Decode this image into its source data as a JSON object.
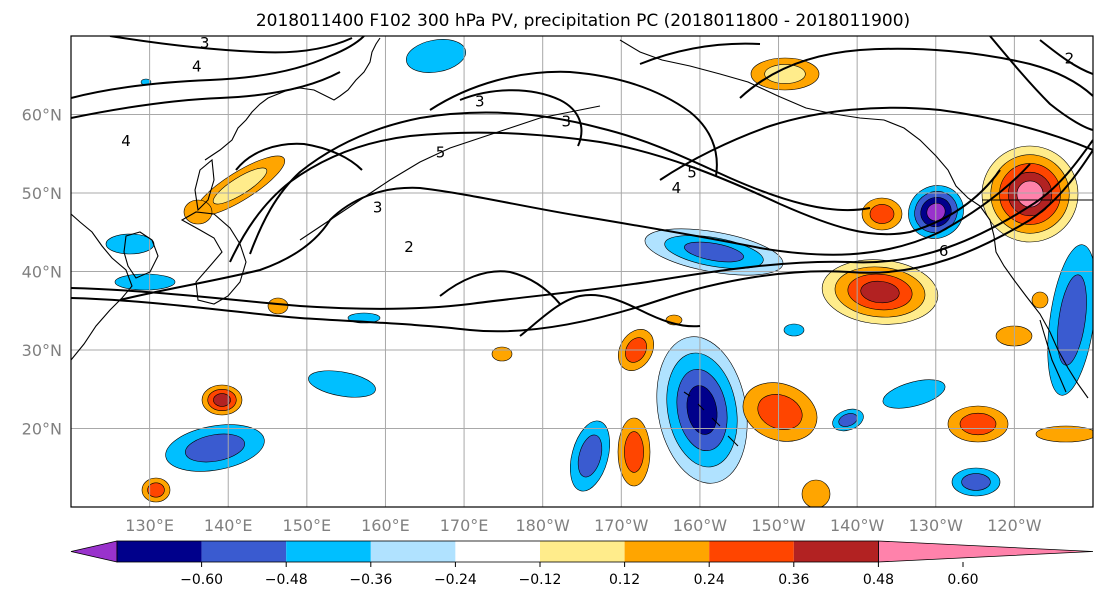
{
  "title": "2018011400 F102 300 hPa PV, precipitation PC (2018011800 - 2018011900)",
  "map": {
    "lat_range": [
      10,
      70
    ],
    "lon_range": [
      120,
      250
    ],
    "lat_ticks": [
      {
        "value": 20,
        "label": "20°N"
      },
      {
        "value": 30,
        "label": "30°N"
      },
      {
        "value": 40,
        "label": "40°N"
      },
      {
        "value": 50,
        "label": "50°N"
      },
      {
        "value": 60,
        "label": "60°N"
      }
    ],
    "lon_ticks": [
      {
        "value": 130,
        "label": "130°E"
      },
      {
        "value": 140,
        "label": "140°E"
      },
      {
        "value": 150,
        "label": "150°E"
      },
      {
        "value": 160,
        "label": "160°E"
      },
      {
        "value": 170,
        "label": "170°E"
      },
      {
        "value": 180,
        "label": "180°W"
      },
      {
        "value": 190,
        "label": "170°W"
      },
      {
        "value": 200,
        "label": "160°W"
      },
      {
        "value": 210,
        "label": "150°W"
      },
      {
        "value": 220,
        "label": "140°W"
      },
      {
        "value": 230,
        "label": "130°W"
      },
      {
        "value": 240,
        "label": "120°W"
      }
    ],
    "gridlines": true,
    "pv_contour_labels": [
      {
        "text": "3",
        "lon": 137,
        "lat": 68.5
      },
      {
        "text": "4",
        "lon": 136,
        "lat": 65.5
      },
      {
        "text": "4",
        "lon": 127,
        "lat": 56
      },
      {
        "text": "3",
        "lon": 172,
        "lat": 61
      },
      {
        "text": "3",
        "lon": 183,
        "lat": 58.5
      },
      {
        "text": "5",
        "lon": 167,
        "lat": 54.5
      },
      {
        "text": "3",
        "lon": 159,
        "lat": 47.5
      },
      {
        "text": "2",
        "lon": 163,
        "lat": 42.5
      },
      {
        "text": "4",
        "lon": 197,
        "lat": 50
      },
      {
        "text": "5",
        "lon": 199,
        "lat": 52
      },
      {
        "text": "6",
        "lon": 231,
        "lat": 42
      },
      {
        "text": "2",
        "lon": 247,
        "lat": 66.5
      }
    ]
  },
  "precip_colors": [
    "#9932cc",
    "#00008b",
    "#3a5bd0",
    "#00bfff",
    "#b0e2ff",
    "#ffffff",
    "#ffec8b",
    "#ffa500",
    "#ff4500",
    "#b22222",
    "#ff82ab"
  ],
  "colorbar": {
    "ticks": [
      "−0.60",
      "−0.48",
      "−0.36",
      "−0.24",
      "−0.12",
      "0.12",
      "0.24",
      "0.36",
      "0.48",
      "0.60"
    ]
  }
}
